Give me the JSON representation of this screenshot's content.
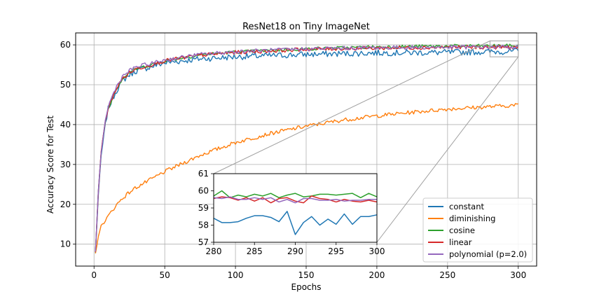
{
  "chart_data": {
    "type": "line",
    "title": "ResNet18 on Tiny ImageNet",
    "xlabel": "Epochs",
    "ylabel": "Accuracy Score for Test",
    "xlim": [
      -13,
      313
    ],
    "ylim": [
      4.5,
      63
    ],
    "xticks": [
      0,
      50,
      100,
      150,
      200,
      250,
      300
    ],
    "yticks": [
      10,
      20,
      30,
      40,
      50,
      60
    ],
    "grid": true,
    "legend_position": "lower-right",
    "series": [
      {
        "name": "constant",
        "color": "#1f77b4",
        "points": [
          [
            1,
            8
          ],
          [
            3,
            22
          ],
          [
            5,
            32
          ],
          [
            8,
            40
          ],
          [
            10,
            44
          ],
          [
            15,
            48
          ],
          [
            20,
            51
          ],
          [
            25,
            52.5
          ],
          [
            30,
            53.5
          ],
          [
            40,
            54.5
          ],
          [
            50,
            55.5
          ],
          [
            75,
            56.5
          ],
          [
            100,
            57
          ],
          [
            150,
            57.6
          ],
          [
            200,
            58
          ],
          [
            250,
            58.1
          ],
          [
            300,
            58.4
          ]
        ]
      },
      {
        "name": "diminishing",
        "color": "#ff7f0e",
        "points": [
          [
            1,
            7.6
          ],
          [
            3,
            12
          ],
          [
            5,
            14.5
          ],
          [
            8,
            16
          ],
          [
            10,
            17
          ],
          [
            15,
            19.5
          ],
          [
            20,
            21.5
          ],
          [
            25,
            23
          ],
          [
            30,
            24.3
          ],
          [
            40,
            26.2
          ],
          [
            50,
            28.2
          ],
          [
            75,
            32.3
          ],
          [
            100,
            35.5
          ],
          [
            125,
            37.8
          ],
          [
            150,
            39.6
          ],
          [
            175,
            41.1
          ],
          [
            200,
            42.2
          ],
          [
            225,
            43.1
          ],
          [
            250,
            43.9
          ],
          [
            275,
            44.4
          ],
          [
            300,
            44.9
          ]
        ]
      },
      {
        "name": "cosine",
        "color": "#2ca02c",
        "points": [
          [
            1,
            8
          ],
          [
            3,
            23
          ],
          [
            5,
            33
          ],
          [
            8,
            41
          ],
          [
            10,
            44
          ],
          [
            15,
            48.5
          ],
          [
            20,
            51.5
          ],
          [
            25,
            53
          ],
          [
            30,
            54
          ],
          [
            40,
            55
          ],
          [
            50,
            56
          ],
          [
            75,
            57.5
          ],
          [
            100,
            58.2
          ],
          [
            150,
            59
          ],
          [
            200,
            59.5
          ],
          [
            250,
            59.7
          ],
          [
            300,
            59.8
          ]
        ]
      },
      {
        "name": "linear",
        "color": "#d62728",
        "points": [
          [
            1,
            8
          ],
          [
            3,
            23
          ],
          [
            5,
            33
          ],
          [
            8,
            41
          ],
          [
            10,
            44
          ],
          [
            15,
            48.5
          ],
          [
            20,
            51.5
          ],
          [
            25,
            53
          ],
          [
            30,
            54
          ],
          [
            40,
            55
          ],
          [
            50,
            56
          ],
          [
            75,
            57.4
          ],
          [
            100,
            58.1
          ],
          [
            150,
            58.9
          ],
          [
            200,
            59.2
          ],
          [
            250,
            59.4
          ],
          [
            300,
            59.4
          ]
        ]
      },
      {
        "name": "polynomial (p=2.0)",
        "color": "#9467bd",
        "points": [
          [
            1,
            8
          ],
          [
            3,
            23
          ],
          [
            5,
            33
          ],
          [
            8,
            41
          ],
          [
            10,
            44.5
          ],
          [
            15,
            49
          ],
          [
            20,
            52
          ],
          [
            25,
            53.5
          ],
          [
            30,
            54.5
          ],
          [
            40,
            55.3
          ],
          [
            50,
            56.2
          ],
          [
            75,
            57.6
          ],
          [
            100,
            58.3
          ],
          [
            150,
            59
          ],
          [
            200,
            59.3
          ],
          [
            250,
            59.4
          ],
          [
            300,
            59.5
          ]
        ]
      }
    ],
    "inset": {
      "xlim": [
        280,
        300
      ],
      "ylim": [
        57,
        61
      ],
      "xticks": [
        280,
        285,
        290,
        295,
        300
      ],
      "yticks": [
        57,
        58,
        59,
        60,
        61
      ],
      "x": [
        280,
        281,
        282,
        283,
        284,
        285,
        286,
        287,
        288,
        289,
        290,
        291,
        292,
        293,
        294,
        295,
        296,
        297,
        298,
        299,
        300
      ],
      "series": [
        {
          "name": "constant",
          "color": "#1f77b4",
          "values": [
            58.4,
            58.15,
            58.15,
            58.2,
            58.4,
            58.55,
            58.55,
            58.45,
            58.2,
            58.8,
            57.45,
            58.15,
            58.5,
            58.0,
            58.35,
            58.05,
            58.65,
            58.05,
            58.5,
            58.5,
            58.6
          ]
        },
        {
          "name": "diminishing",
          "color": "#ff7f0e",
          "values": []
        },
        {
          "name": "cosine",
          "color": "#2ca02c",
          "values": [
            59.7,
            60.0,
            59.6,
            59.75,
            59.65,
            59.8,
            59.7,
            59.85,
            59.6,
            59.75,
            59.85,
            59.65,
            59.7,
            59.8,
            59.8,
            59.75,
            59.8,
            59.85,
            59.6,
            59.85,
            59.65
          ]
        },
        {
          "name": "linear",
          "color": "#d62728",
          "values": [
            59.55,
            59.65,
            59.6,
            59.45,
            59.6,
            59.4,
            59.6,
            59.3,
            59.55,
            59.6,
            59.4,
            59.3,
            59.7,
            59.55,
            59.5,
            59.35,
            59.5,
            59.4,
            59.35,
            59.45,
            59.35
          ]
        },
        {
          "name": "polynomial (p=2.0)",
          "color": "#9467bd",
          "values": [
            59.6,
            59.55,
            59.65,
            59.5,
            59.5,
            59.6,
            59.5,
            59.6,
            59.35,
            59.5,
            59.3,
            59.55,
            59.55,
            59.45,
            59.45,
            59.5,
            59.4,
            59.45,
            59.45,
            59.5,
            59.5
          ]
        }
      ]
    }
  }
}
